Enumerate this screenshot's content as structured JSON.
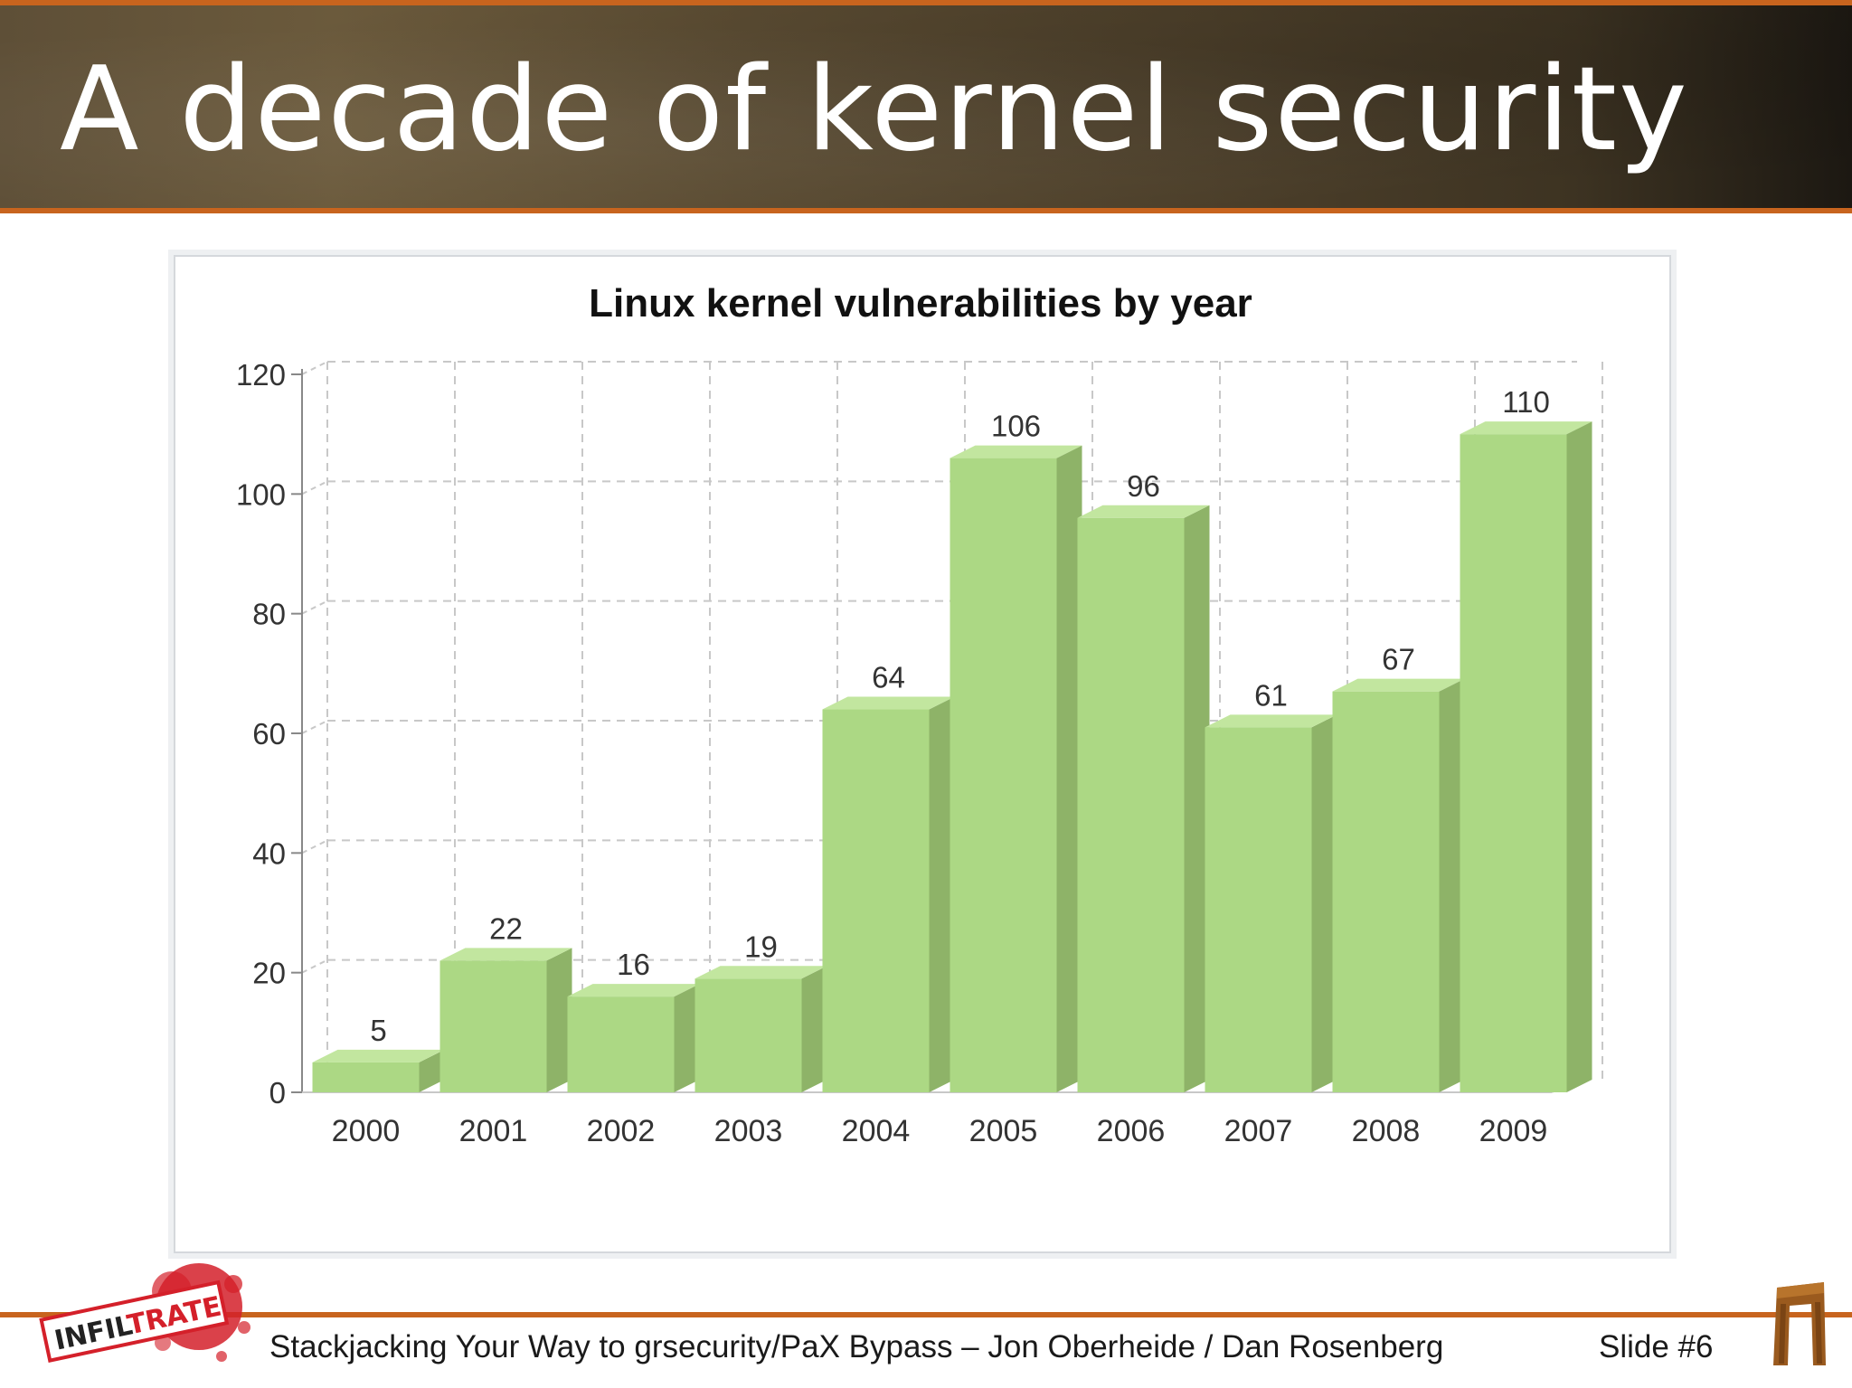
{
  "slide": {
    "title": "A decade of kernel security",
    "footer": "Stackjacking Your Way to grsecurity/PaX Bypass – Jon Oberheide / Dan Rosenberg",
    "slide_number": "Slide #6",
    "logo_text": "INFILTRATE"
  },
  "colors": {
    "accent": "#c8641e",
    "bar_front": "#acd884",
    "bar_top": "#c2e69f",
    "bar_side": "#8eb368"
  },
  "chart_data": {
    "type": "bar",
    "title": "Linux kernel vulnerabilities by year",
    "categories": [
      "2000",
      "2001",
      "2002",
      "2003",
      "2004",
      "2005",
      "2006",
      "2007",
      "2008",
      "2009"
    ],
    "values": [
      5,
      22,
      16,
      19,
      64,
      106,
      96,
      61,
      67,
      110
    ],
    "data_labels": [
      "5",
      "22",
      "16",
      "19",
      "64",
      "106",
      "96",
      "61",
      "67",
      "110"
    ],
    "yticks": [
      "0",
      "20",
      "40",
      "60",
      "80",
      "100",
      "120"
    ],
    "ylim": [
      0,
      120
    ],
    "grid": true,
    "legend": false,
    "xlabel": "",
    "ylabel": ""
  }
}
